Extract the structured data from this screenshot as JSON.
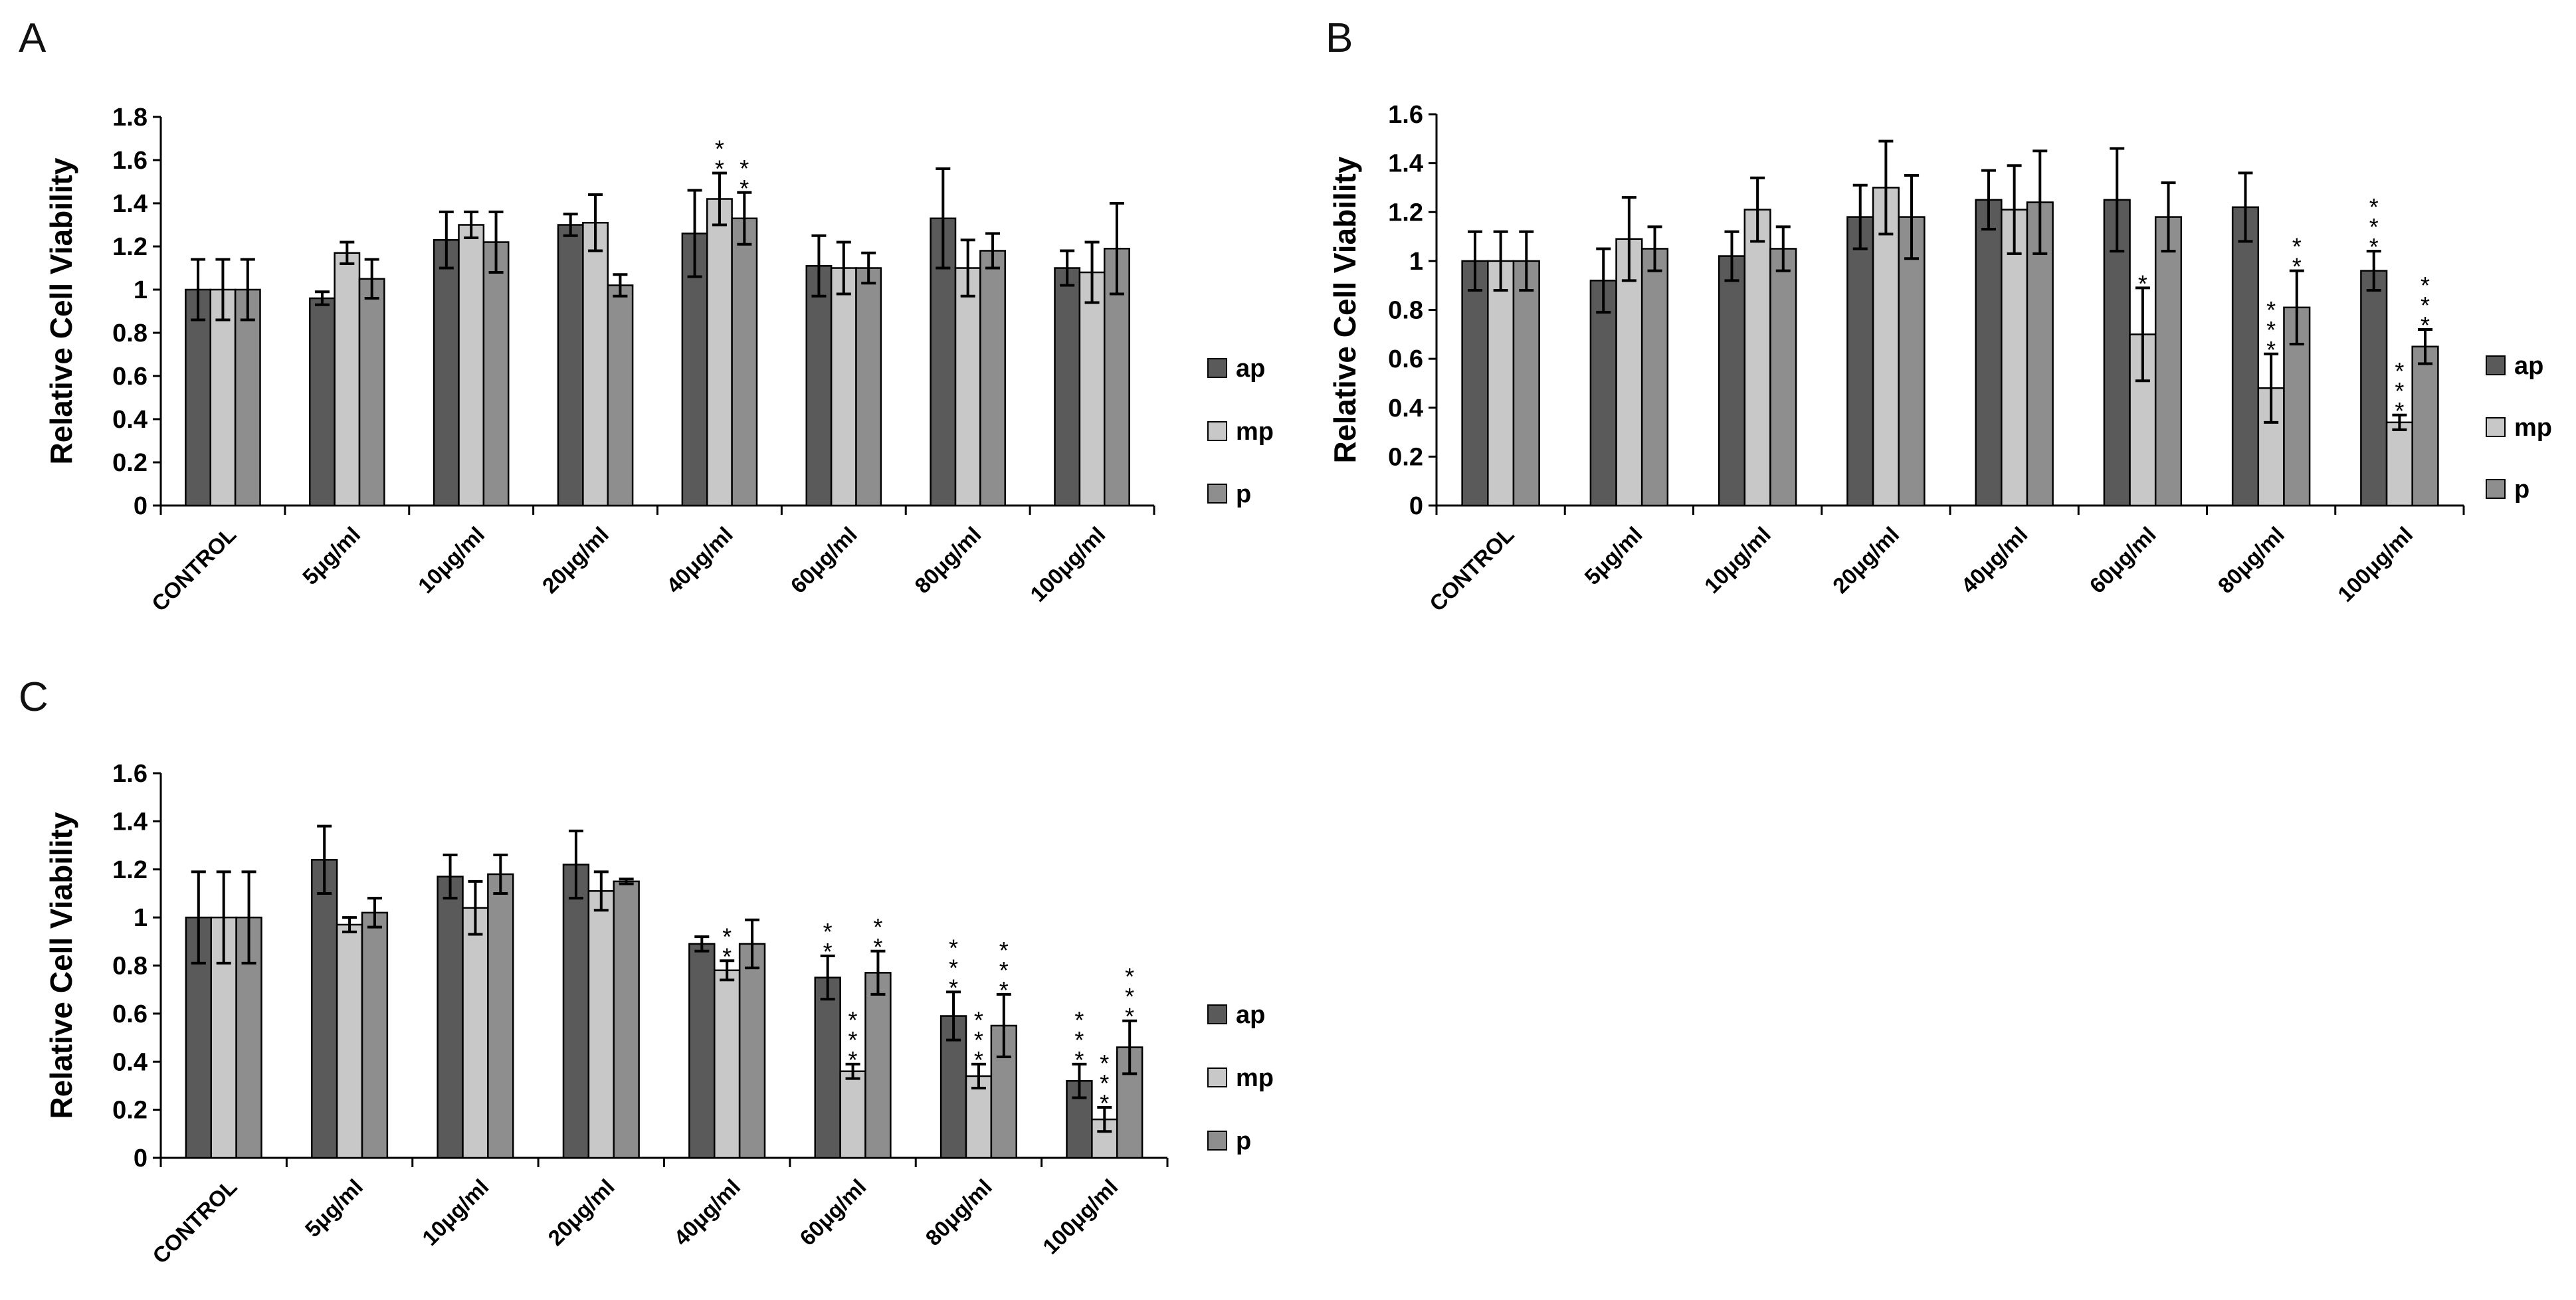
{
  "chart_data": [
    {
      "type": "bar",
      "panel_label": "A",
      "categories": [
        "CONTROL",
        "5μg/ml",
        "10μg/ml",
        "20μg/ml",
        "40μg/ml",
        "60μg/ml",
        "80μg/ml",
        "100μg/ml"
      ],
      "ylabel": "Relative Cell Viability",
      "ylim": [
        0,
        1.8
      ],
      "yticks": [
        "0",
        "0.2",
        "0.4",
        "0.6",
        "0.8",
        "1",
        "1.2",
        "1.4",
        "1.6",
        "1.8"
      ],
      "legend_position": "right",
      "series": [
        {
          "name": "ap",
          "color": "#5a5a5a",
          "values": [
            1.0,
            0.96,
            1.23,
            1.3,
            1.26,
            1.11,
            1.33,
            1.1
          ],
          "errors": [
            0.14,
            0.03,
            0.13,
            0.05,
            0.2,
            0.14,
            0.23,
            0.08
          ],
          "stars": [
            "",
            "",
            "",
            "",
            "",
            "",
            "",
            ""
          ]
        },
        {
          "name": "mp",
          "color": "#c8c8c8",
          "values": [
            1.0,
            1.17,
            1.3,
            1.31,
            1.42,
            1.1,
            1.1,
            1.08
          ],
          "errors": [
            0.14,
            0.05,
            0.06,
            0.13,
            0.12,
            0.12,
            0.13,
            0.14
          ],
          "stars": [
            "",
            "",
            "",
            "",
            "**",
            "",
            "",
            ""
          ]
        },
        {
          "name": "p",
          "color": "#8e8e8e",
          "values": [
            1.0,
            1.05,
            1.22,
            1.02,
            1.33,
            1.1,
            1.18,
            1.19
          ],
          "errors": [
            0.14,
            0.09,
            0.14,
            0.05,
            0.12,
            0.07,
            0.08,
            0.21
          ],
          "stars": [
            "",
            "",
            "",
            "",
            "**",
            "",
            "",
            ""
          ]
        }
      ]
    },
    {
      "type": "bar",
      "panel_label": "B",
      "categories": [
        "CONTROL",
        "5μg/ml",
        "10μg/ml",
        "20μg/ml",
        "40μg/ml",
        "60μg/ml",
        "80μg/ml",
        "100μg/ml"
      ],
      "ylabel": "Relative Cell Viability",
      "ylim": [
        0,
        1.6
      ],
      "yticks": [
        "0",
        "0.2",
        "0.4",
        "0.6",
        "0.8",
        "1",
        "1.2",
        "1.4",
        "1.6"
      ],
      "legend_position": "right",
      "series": [
        {
          "name": "ap",
          "color": "#5a5a5a",
          "values": [
            1.0,
            0.92,
            1.02,
            1.18,
            1.25,
            1.25,
            1.22,
            0.96
          ],
          "errors": [
            0.12,
            0.13,
            0.1,
            0.13,
            0.12,
            0.21,
            0.14,
            0.08
          ],
          "stars": [
            "",
            "",
            "",
            "",
            "",
            "",
            "",
            "***"
          ]
        },
        {
          "name": "mp",
          "color": "#c8c8c8",
          "values": [
            1.0,
            1.09,
            1.21,
            1.3,
            1.21,
            0.7,
            0.48,
            0.34
          ],
          "errors": [
            0.12,
            0.17,
            0.13,
            0.19,
            0.18,
            0.19,
            0.14,
            0.03
          ],
          "stars": [
            "",
            "",
            "",
            "",
            "",
            "*",
            "***",
            "***"
          ]
        },
        {
          "name": "p",
          "color": "#8e8e8e",
          "values": [
            1.0,
            1.05,
            1.05,
            1.18,
            1.24,
            1.18,
            0.81,
            0.65
          ],
          "errors": [
            0.12,
            0.09,
            0.09,
            0.17,
            0.21,
            0.14,
            0.15,
            0.07
          ],
          "stars": [
            "",
            "",
            "",
            "",
            "",
            "",
            "**",
            "***"
          ]
        }
      ]
    },
    {
      "type": "bar",
      "panel_label": "C",
      "categories": [
        "CONTROL",
        "5μg/ml",
        "10μg/ml",
        "20μg/ml",
        "40μg/ml",
        "60μg/ml",
        "80μg/ml",
        "100μg/ml"
      ],
      "ylabel": "Relative Cell Viability",
      "ylim": [
        0,
        1.6
      ],
      "yticks": [
        "0",
        "0.2",
        "0.4",
        "0.6",
        "0.8",
        "1",
        "1.2",
        "1.4",
        "1.6"
      ],
      "legend_position": "right",
      "series": [
        {
          "name": "ap",
          "color": "#5a5a5a",
          "values": [
            1.0,
            1.24,
            1.17,
            1.22,
            0.89,
            0.75,
            0.59,
            0.32
          ],
          "errors": [
            0.19,
            0.14,
            0.09,
            0.14,
            0.03,
            0.09,
            0.1,
            0.07
          ],
          "stars": [
            "",
            "",
            "",
            "",
            "",
            "**",
            "***",
            "***"
          ]
        },
        {
          "name": "mp",
          "color": "#c8c8c8",
          "values": [
            1.0,
            0.97,
            1.04,
            1.11,
            0.78,
            0.36,
            0.34,
            0.16
          ],
          "errors": [
            0.19,
            0.03,
            0.11,
            0.08,
            0.04,
            0.03,
            0.05,
            0.05
          ],
          "stars": [
            "",
            "",
            "",
            "",
            "**",
            "***",
            "***",
            "***"
          ]
        },
        {
          "name": "p",
          "color": "#8e8e8e",
          "values": [
            1.0,
            1.02,
            1.18,
            1.15,
            0.89,
            0.77,
            0.55,
            0.46
          ],
          "errors": [
            0.19,
            0.06,
            0.08,
            0.01,
            0.1,
            0.09,
            0.13,
            0.11
          ],
          "stars": [
            "",
            "",
            "",
            "",
            "",
            "**",
            "***",
            "***"
          ]
        }
      ]
    }
  ]
}
